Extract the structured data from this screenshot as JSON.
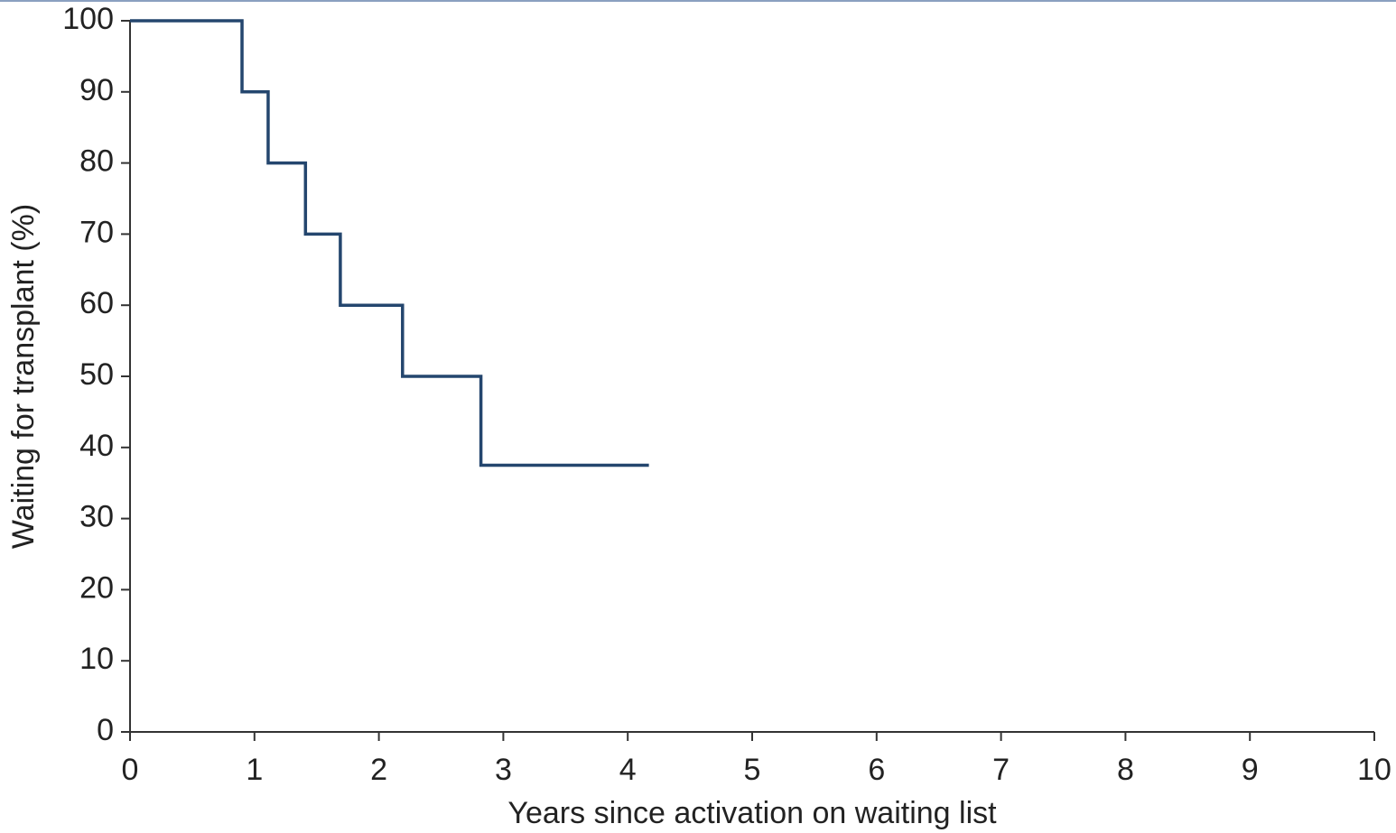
{
  "chart_data": {
    "type": "step",
    "x_label": "Years since activation on waiting list",
    "y_label": "Waiting for transplant (%)",
    "x": [
      0,
      0.9,
      1.11,
      1.41,
      1.69,
      2.19,
      2.82,
      4.17
    ],
    "values": [
      100,
      90,
      80,
      70,
      60,
      50,
      37.5,
      37.5
    ],
    "color": "#24466e",
    "xlim": [
      0,
      10
    ],
    "xticks": [
      0,
      1,
      2,
      3,
      4,
      5,
      6,
      7,
      8,
      9,
      10
    ],
    "ylim": [
      0,
      100
    ],
    "yticks": [
      0,
      10,
      20,
      30,
      40,
      50,
      60,
      70,
      80,
      90,
      100
    ],
    "grid": false
  }
}
